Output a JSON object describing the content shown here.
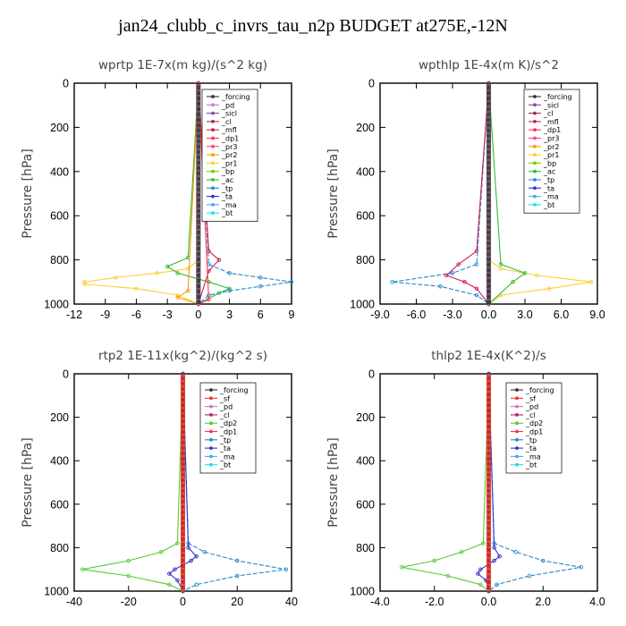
{
  "title": "jan24_clubb_c_invrs_tau_n2p  BUDGET at275E,-12N",
  "colors": {
    "forcing": "#333333",
    "pd": "#cc77cc",
    "sicl": "#8844aa",
    "cl": "#aa2266",
    "mfl": "#cc2255",
    "dp1": "#ff3355",
    "pr3": "#ff4488",
    "pr2": "#ff9900",
    "pr1": "#ffcc33",
    "bp": "#77cc00",
    "ac": "#33bb33",
    "tp": "#2288cc",
    "ta": "#3333cc",
    "ma": "#44aaee",
    "bt": "#22ddee",
    "sf": "#ee3333",
    "dp2": "#55cc33"
  },
  "chart_data": [
    {
      "type": "line",
      "title": "wprtp  1E-7x(m kg)/(s^2 kg)",
      "ylabel": "Pressure [hPa]",
      "ylim": [
        1000,
        0
      ],
      "xlim": [
        -12,
        9
      ],
      "xticks": [
        "-12",
        "-9",
        "-6",
        "-3",
        "0",
        "3",
        "6",
        "9"
      ],
      "yticks": [
        "0",
        "200",
        "400",
        "600",
        "800",
        "1000"
      ],
      "legend": [
        "_forcing",
        "_pd",
        "_sicl",
        "_cl",
        "_mfl",
        "_dp1",
        "_pr3",
        "_pr2",
        "_pr1",
        "_bp",
        "_ac",
        "_tp",
        "_ta",
        "_ma",
        "_bt"
      ],
      "series": [
        {
          "name": "_forcing",
          "x": [
            0,
            0,
            0,
            0,
            0,
            0
          ],
          "y": [
            0,
            200,
            400,
            600,
            800,
            1000
          ]
        },
        {
          "name": "_pr1",
          "x": [
            0,
            0,
            -1,
            -4,
            -8,
            -11,
            -11,
            -6,
            -2,
            0
          ],
          "y": [
            0,
            800,
            840,
            860,
            880,
            900,
            910,
            930,
            960,
            1000
          ]
        },
        {
          "name": "_ac",
          "x": [
            0,
            -1,
            -3,
            -2,
            1,
            3,
            2,
            0
          ],
          "y": [
            0,
            790,
            830,
            860,
            900,
            930,
            950,
            1000
          ]
        },
        {
          "name": "_tp",
          "x": [
            0,
            1,
            3,
            6,
            9,
            6,
            3,
            1,
            0
          ],
          "y": [
            0,
            820,
            860,
            880,
            900,
            920,
            940,
            960,
            1000
          ]
        },
        {
          "name": "_mfl",
          "x": [
            0,
            1,
            2,
            1,
            0
          ],
          "y": [
            0,
            760,
            800,
            850,
            1000
          ]
        },
        {
          "name": "_pr2",
          "x": [
            0,
            -1,
            -2,
            0
          ],
          "y": [
            0,
            940,
            970,
            1000
          ]
        },
        {
          "name": "_dp1",
          "x": [
            0,
            1,
            0
          ],
          "y": [
            0,
            980,
            1000
          ]
        }
      ]
    },
    {
      "type": "line",
      "title": "wpthlp  1E-4x(m K)/s^2",
      "ylabel": "Pressure [hPa]",
      "ylim": [
        1000,
        0
      ],
      "xlim": [
        -9,
        9
      ],
      "xticks": [
        "-9.0",
        "-6.0",
        "-3.0",
        "0.0",
        "3.0",
        "6.0",
        "9.0"
      ],
      "yticks": [
        "0",
        "200",
        "400",
        "600",
        "800",
        "1000"
      ],
      "legend": [
        "_forcing",
        "_sicl",
        "_cl",
        "_mfl",
        "_dp1",
        "_pr3",
        "_pr2",
        "_pr1",
        "_bp",
        "_ac",
        "_tp",
        "_ta",
        "_ma",
        "_bt"
      ],
      "series": [
        {
          "name": "_forcing",
          "x": [
            0,
            0,
            0,
            0
          ],
          "y": [
            0,
            400,
            800,
            1000
          ]
        },
        {
          "name": "_pr1",
          "x": [
            0,
            0,
            1,
            4,
            8.5,
            5,
            1,
            0
          ],
          "y": [
            0,
            800,
            840,
            870,
            900,
            930,
            960,
            1000
          ]
        },
        {
          "name": "_ac",
          "x": [
            0,
            1,
            3,
            2,
            0
          ],
          "y": [
            0,
            820,
            860,
            900,
            1000
          ]
        },
        {
          "name": "_tp",
          "x": [
            0,
            -1,
            -3,
            -8,
            -4,
            -1,
            0
          ],
          "y": [
            0,
            820,
            860,
            900,
            920,
            960,
            1000
          ]
        },
        {
          "name": "_mfl",
          "x": [
            0,
            -1,
            -2.5,
            -3.5,
            -2,
            -1,
            0
          ],
          "y": [
            0,
            760,
            820,
            870,
            900,
            930,
            1000
          ]
        }
      ]
    },
    {
      "type": "line",
      "title": "rtp2  1E-11x(kg^2)/(kg^2 s)",
      "ylabel": "Pressure [hPa]",
      "ylim": [
        1000,
        0
      ],
      "xlim": [
        -40,
        40
      ],
      "xticks": [
        "-40",
        "-20",
        "0",
        "20",
        "40"
      ],
      "yticks": [
        "0",
        "200",
        "400",
        "600",
        "800",
        "1000"
      ],
      "legend": [
        "_forcing",
        "_sf",
        "_pd",
        "_cl",
        "_dp2",
        "_dp1",
        "_tp",
        "_ta",
        "_ma",
        "_bt"
      ],
      "series": [
        {
          "name": "_forcing",
          "x": [
            0,
            0,
            0,
            0
          ],
          "y": [
            0,
            400,
            800,
            1000
          ]
        },
        {
          "name": "_dp2",
          "x": [
            0,
            -2,
            -8,
            -20,
            -37,
            -20,
            -5,
            0
          ],
          "y": [
            0,
            780,
            820,
            860,
            900,
            930,
            970,
            1000
          ]
        },
        {
          "name": "_tp",
          "x": [
            0,
            2,
            8,
            20,
            38,
            20,
            5,
            0
          ],
          "y": [
            0,
            780,
            820,
            860,
            900,
            930,
            970,
            1000
          ]
        },
        {
          "name": "_ta",
          "x": [
            0,
            2,
            5,
            3,
            -3,
            -5,
            -2,
            0
          ],
          "y": [
            0,
            800,
            840,
            860,
            900,
            920,
            950,
            1000
          ]
        }
      ]
    },
    {
      "type": "line",
      "title": "thlp2  1E-4x(K^2)/s",
      "ylabel": "Pressure [hPa]",
      "ylim": [
        1000,
        0
      ],
      "xlim": [
        -4,
        4
      ],
      "xticks": [
        "-4.0",
        "-2.0",
        "0.0",
        "2.0",
        "4.0"
      ],
      "yticks": [
        "0",
        "200",
        "400",
        "600",
        "800",
        "1000"
      ],
      "legend": [
        "_forcing",
        "_sf",
        "_pd",
        "_cl",
        "_dp2",
        "_dp1",
        "_tp",
        "_ta",
        "_ma",
        "_bt"
      ],
      "series": [
        {
          "name": "_forcing",
          "x": [
            0,
            0,
            0,
            0
          ],
          "y": [
            0,
            400,
            800,
            1000
          ]
        },
        {
          "name": "_dp2",
          "x": [
            0,
            -0.2,
            -1,
            -2,
            -3.2,
            -1.5,
            -0.3,
            0
          ],
          "y": [
            0,
            780,
            820,
            860,
            890,
            930,
            970,
            1000
          ]
        },
        {
          "name": "_tp",
          "x": [
            0,
            0.2,
            1,
            2,
            3.4,
            1.5,
            0.3,
            0
          ],
          "y": [
            0,
            780,
            820,
            860,
            890,
            930,
            970,
            1000
          ]
        },
        {
          "name": "_ta",
          "x": [
            0,
            0.2,
            0.4,
            0.2,
            -0.3,
            -0.4,
            -0.1,
            0
          ],
          "y": [
            0,
            800,
            840,
            860,
            900,
            920,
            950,
            1000
          ]
        }
      ]
    }
  ]
}
